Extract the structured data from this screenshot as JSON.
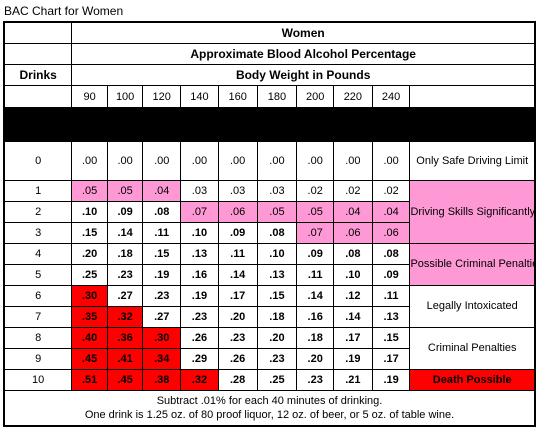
{
  "caption": "BAC Chart for Women",
  "header": {
    "title": "Women",
    "subtitle": "Approximate Blood Alcohol Percentage",
    "drinks_label": "Drinks",
    "weight_label": "Body Weight in Pounds",
    "weights": [
      "90",
      "100",
      "120",
      "140",
      "160",
      "180",
      "200",
      "220",
      "240"
    ]
  },
  "rows": [
    {
      "drinks": "0",
      "values": [
        ".00",
        ".00",
        ".00",
        ".00",
        ".00",
        ".00",
        ".00",
        ".00",
        ".00"
      ]
    },
    {
      "drinks": "1",
      "values": [
        ".05",
        ".05",
        ".04",
        ".03",
        ".03",
        ".03",
        ".02",
        ".02",
        ".02"
      ]
    },
    {
      "drinks": "2",
      "values": [
        ".10",
        ".09",
        ".08",
        ".07",
        ".06",
        ".05",
        ".05",
        ".04",
        ".04"
      ]
    },
    {
      "drinks": "3",
      "values": [
        ".15",
        ".14",
        ".11",
        ".10",
        ".09",
        ".08",
        ".07",
        ".06",
        ".06"
      ]
    },
    {
      "drinks": "4",
      "values": [
        ".20",
        ".18",
        ".15",
        ".13",
        ".11",
        ".10",
        ".09",
        ".08",
        ".08"
      ]
    },
    {
      "drinks": "5",
      "values": [
        ".25",
        ".23",
        ".19",
        ".16",
        ".14",
        ".13",
        ".11",
        ".10",
        ".09"
      ]
    },
    {
      "drinks": "6",
      "values": [
        ".30",
        ".27",
        ".23",
        ".19",
        ".17",
        ".15",
        ".14",
        ".12",
        ".11"
      ]
    },
    {
      "drinks": "7",
      "values": [
        ".35",
        ".32",
        ".27",
        ".23",
        ".20",
        ".18",
        ".16",
        ".14",
        ".13"
      ]
    },
    {
      "drinks": "8",
      "values": [
        ".40",
        ".36",
        ".30",
        ".26",
        ".23",
        ".20",
        ".18",
        ".17",
        ".15"
      ]
    },
    {
      "drinks": "9",
      "values": [
        ".45",
        ".41",
        ".34",
        ".29",
        ".26",
        ".23",
        ".20",
        ".19",
        ".17"
      ]
    },
    {
      "drinks": "10",
      "values": [
        ".51",
        ".45",
        ".38",
        ".32",
        ".28",
        ".25",
        ".23",
        ".21",
        ".19"
      ]
    }
  ],
  "zones": {
    "safe": "Only Safe Driving Limit",
    "impaired": "Driving Skills Significantly Affected",
    "possible_penalties": "Possible Criminal Penalties",
    "legally_intoxicated": "Legally Intoxicated",
    "criminal_penalties": "Criminal Penalties",
    "death": "Death Possible"
  },
  "footer": {
    "line1": "Subtract .01% for each 40 minutes of drinking.",
    "line2": "One drink is 1.25 oz. of 80 proof liquor, 12 oz. of beer, or 5 oz. of table wine."
  },
  "colors": {
    "pink": "#ff99d6",
    "red": "#ff0000",
    "black": "#000000"
  }
}
